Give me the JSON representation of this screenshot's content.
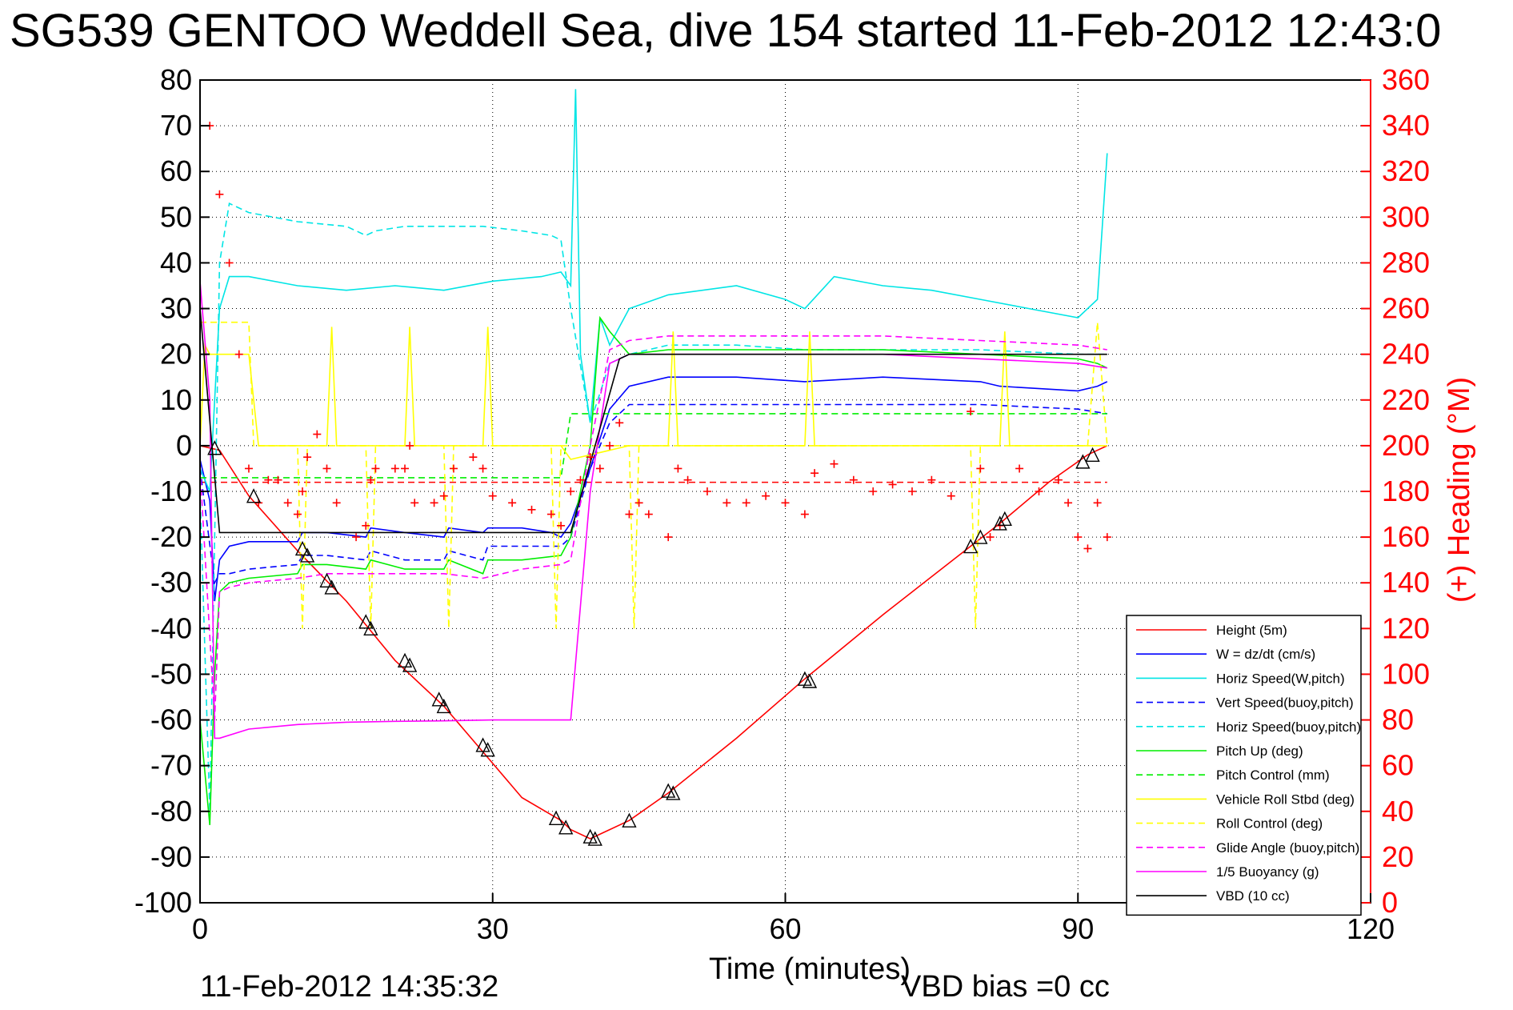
{
  "chart_data": {
    "type": "line",
    "title": "SG539 GENTOO Weddell Sea, dive 154 started 11-Feb-2012 12:43:0",
    "xlabel": "Time (minutes)",
    "ylabel_right": "(+) Heading (°M)",
    "footer_left": "11-Feb-2012 14:35:32",
    "footer_right": "VBD bias =0 cc",
    "xlim": [
      0,
      120
    ],
    "ylim": [
      -100,
      80
    ],
    "ylim_right": [
      0,
      360
    ],
    "x_ticks": [
      0,
      30,
      60,
      90,
      120
    ],
    "y_ticks": [
      80,
      70,
      60,
      50,
      40,
      30,
      20,
      10,
      0,
      -10,
      -20,
      -30,
      -40,
      -50,
      -60,
      -70,
      -80,
      -90,
      -100
    ],
    "y_ticks_right": [
      360,
      340,
      320,
      300,
      280,
      260,
      240,
      220,
      200,
      180,
      160,
      140,
      120,
      100,
      80,
      60,
      40,
      20,
      0
    ],
    "grid": true,
    "legend_position": "bottom-right",
    "colors": {
      "red": "#ff0000",
      "blue": "#0000ff",
      "cyan": "#00e5e5",
      "green": "#00ee00",
      "yellow": "#ffff00",
      "magenta": "#ff00ff",
      "black": "#000000"
    },
    "series": [
      {
        "name": "Height (5m)",
        "color": "#ff0000",
        "dash": false,
        "x": [
          0,
          2,
          5,
          10,
          15,
          20,
          25,
          29,
          33,
          37,
          38,
          40,
          42,
          44,
          48,
          55,
          62,
          70,
          79,
          82,
          87,
          91,
          93
        ],
        "y": [
          0,
          -1,
          -11,
          -23,
          -34,
          -47,
          -57,
          -67,
          -77,
          -82,
          -84,
          -86,
          -84,
          -82,
          -76,
          -64,
          -51,
          -37,
          -22,
          -17,
          -8,
          -2,
          0
        ]
      },
      {
        "name": "W = dz/dt (cm/s)",
        "color": "#0000ff",
        "dash": false,
        "x": [
          0,
          1,
          1.5,
          2,
          3,
          5,
          8,
          10,
          10.5,
          13,
          17,
          17.5,
          21,
          25,
          25.5,
          29,
          29.5,
          33,
          36,
          37,
          38,
          40,
          42,
          44,
          48,
          55,
          62,
          70,
          80,
          82,
          90,
          92,
          93
        ],
        "y": [
          -3,
          -12,
          -34,
          -25,
          -22,
          -21,
          -21,
          -21,
          -19,
          -19,
          -20,
          -18,
          -19,
          -20,
          -18,
          -19,
          -18,
          -18,
          -19,
          -20,
          -17,
          -5,
          8,
          13,
          15,
          15,
          14,
          15,
          14,
          13,
          12,
          13,
          14
        ]
      },
      {
        "name": "Horiz Speed(W,pitch)",
        "color": "#00e5e5",
        "dash": false,
        "x": [
          0,
          1,
          1.5,
          2,
          3,
          5,
          10,
          15,
          20,
          25,
          30,
          35,
          37,
          38,
          38.5,
          39,
          40,
          41,
          42,
          44,
          48,
          55,
          60,
          62,
          65,
          70,
          75,
          80,
          85,
          90,
          91,
          92,
          93
        ],
        "y": [
          -5,
          -10,
          10,
          30,
          37,
          37,
          35,
          34,
          35,
          34,
          36,
          37,
          38,
          35,
          78,
          20,
          5,
          28,
          22,
          30,
          33,
          35,
          32,
          30,
          37,
          35,
          34,
          32,
          30,
          28,
          30,
          32,
          64
        ]
      },
      {
        "name": "Vert Speed(buoy,pitch)",
        "color": "#0000ff",
        "dash": true,
        "x": [
          0,
          1.5,
          2,
          3,
          5,
          10,
          10.5,
          13,
          17,
          17.5,
          21,
          25,
          25.5,
          29,
          29.5,
          33,
          37,
          38,
          40,
          42,
          44,
          48,
          55,
          62,
          70,
          80,
          90,
          93
        ],
        "y": [
          -5,
          -30,
          -28,
          -28,
          -27,
          -26,
          -24,
          -24,
          -25,
          -23,
          -25,
          -25,
          -23,
          -25,
          -22,
          -22,
          -22,
          -20,
          -5,
          5,
          9,
          9,
          9,
          9,
          9,
          9,
          8,
          7
        ]
      },
      {
        "name": "Horiz Speed(buoy,pitch)",
        "color": "#00e5e5",
        "dash": true,
        "x": [
          0,
          1,
          2,
          3,
          5,
          10,
          15,
          17,
          18,
          21,
          25,
          29,
          33,
          36,
          37,
          38,
          40,
          42,
          44,
          48,
          55,
          62,
          70,
          80,
          90,
          93
        ],
        "y": [
          -10,
          -80,
          40,
          53,
          51,
          49,
          48,
          46,
          47,
          48,
          48,
          48,
          47,
          46,
          45,
          30,
          5,
          18,
          20,
          22,
          22,
          21,
          21,
          21,
          20,
          20
        ]
      },
      {
        "name": "Pitch Up (deg)",
        "color": "#00ee00",
        "dash": false,
        "x": [
          0,
          1,
          1.5,
          2,
          3,
          5,
          10,
          10.5,
          13,
          17,
          17.5,
          21,
          25,
          25.5,
          29,
          29.5,
          33,
          37,
          38,
          40,
          41,
          42,
          44,
          48,
          55,
          62,
          70,
          80,
          90,
          92,
          93
        ],
        "y": [
          -60,
          -83,
          -50,
          -32,
          -30,
          -29,
          -28,
          -26,
          -26,
          -27,
          -25,
          -27,
          -27,
          -25,
          -28,
          -25,
          -25,
          -24,
          -20,
          0,
          28,
          25,
          20,
          21,
          21,
          21,
          21,
          20,
          19,
          18,
          17
        ]
      },
      {
        "name": "Pitch Control (mm)",
        "color": "#00ee00",
        "dash": true,
        "x": [
          0,
          37,
          38,
          44,
          93
        ],
        "y": [
          -7,
          -7,
          7,
          7,
          7
        ]
      },
      {
        "name": "Vehicle Roll Stbd (deg)",
        "color": "#ffff00",
        "dash": false,
        "x": [
          0,
          0.5,
          1,
          3,
          5,
          6,
          13,
          13.5,
          14,
          21,
          21.5,
          22,
          29,
          29.5,
          30,
          37,
          38,
          44,
          48,
          48.5,
          49,
          62,
          62.5,
          63,
          79,
          80,
          82,
          82.5,
          83,
          93
        ],
        "y": [
          0,
          22,
          20,
          20,
          20,
          0,
          0,
          26,
          0,
          0,
          26,
          0,
          0,
          26,
          0,
          0,
          -3,
          0,
          0,
          25,
          0,
          0,
          25,
          0,
          0,
          0,
          0,
          25,
          0,
          0
        ]
      },
      {
        "name": "Roll Control (deg)",
        "color": "#ffff00",
        "dash": true,
        "x": [
          0,
          0.5,
          1,
          5,
          5.5,
          10,
          10.5,
          11,
          17,
          17.5,
          18,
          25,
          25.5,
          26,
          36,
          36.5,
          37,
          44,
          44.5,
          45,
          79,
          79.5,
          80,
          91,
          92,
          93
        ],
        "y": [
          27,
          27,
          27,
          27,
          0,
          0,
          -40,
          0,
          0,
          -40,
          0,
          0,
          -40,
          0,
          0,
          -40,
          0,
          0,
          -40,
          0,
          0,
          -40,
          0,
          0,
          27,
          0
        ]
      },
      {
        "name": "Glide Angle (buoy,pitch)",
        "color": "#ff00ff",
        "dash": true,
        "x": [
          0,
          1.5,
          2,
          3,
          5,
          10,
          13,
          17,
          21,
          25,
          29,
          33,
          37,
          38,
          40,
          42,
          44,
          48,
          55,
          62,
          70,
          80,
          90,
          93
        ],
        "y": [
          -5,
          -60,
          -32,
          -31,
          -30,
          -29,
          -28,
          -28,
          -28,
          -28,
          -29,
          -27,
          -26,
          -25,
          0,
          21,
          23,
          24,
          24,
          24,
          24,
          23,
          22,
          21
        ]
      },
      {
        "name": "1/5 Buoyancy (g)",
        "color": "#ff00ff",
        "dash": false,
        "x": [
          0,
          1,
          1.5,
          2,
          5,
          10,
          15,
          20,
          25,
          30,
          35,
          37,
          38,
          40,
          42,
          44,
          48,
          55,
          62,
          70,
          80,
          90,
          93
        ],
        "y": [
          36,
          10,
          -64,
          -64,
          -62,
          -61,
          -60.5,
          -60.3,
          -60.2,
          -60,
          -60,
          -60,
          -60,
          -10,
          18,
          20,
          20,
          20,
          20,
          20,
          19,
          18,
          17
        ]
      },
      {
        "name": "VBD (10 cc)",
        "color": "#000000",
        "dash": false,
        "x": [
          0,
          2,
          37,
          38,
          43,
          44,
          93
        ],
        "y": [
          30,
          -19,
          -19,
          -19,
          19,
          20,
          20
        ]
      }
    ],
    "heading": {
      "name": "Heading (+)",
      "color": "#ff0000",
      "x": [
        0,
        1,
        2,
        3,
        4,
        5,
        6,
        7,
        8,
        9,
        10,
        10.5,
        11,
        12,
        13,
        14,
        16,
        17,
        17.5,
        18,
        20,
        21,
        21.5,
        22,
        24,
        25,
        26,
        28,
        29,
        30,
        32,
        34,
        36,
        37,
        38,
        39,
        40,
        41,
        42,
        43,
        44,
        45,
        46,
        48,
        49,
        50,
        52,
        54,
        56,
        58,
        60,
        62,
        63,
        65,
        67,
        69,
        71,
        73,
        75,
        77,
        79,
        80,
        81,
        82,
        84,
        86,
        88,
        89,
        90,
        91,
        92,
        93
      ],
      "y": [
        300,
        340,
        310,
        280,
        240,
        190,
        175,
        185,
        185,
        175,
        170,
        180,
        195,
        205,
        190,
        175,
        160,
        165,
        185,
        190,
        190,
        190,
        200,
        175,
        175,
        178,
        190,
        195,
        190,
        178,
        175,
        172,
        170,
        165,
        180,
        185,
        195,
        190,
        200,
        210,
        170,
        175,
        170,
        160,
        190,
        185,
        180,
        175,
        175,
        178,
        175,
        170,
        188,
        192,
        185,
        180,
        183,
        180,
        185,
        178,
        215,
        190,
        160,
        165,
        190,
        180,
        185,
        175,
        160,
        155,
        175,
        160
      ]
    },
    "heading_mean": 184,
    "markers": {
      "symbol": "triangle",
      "color": "#000000",
      "x": [
        1.5,
        5.5,
        10.5,
        11,
        13,
        13.5,
        17,
        17.5,
        21,
        21.5,
        24.5,
        25,
        29,
        29.5,
        36.5,
        37.5,
        40,
        40.5,
        44,
        48,
        48.5,
        62,
        62.5,
        79,
        80,
        82,
        82.5,
        90.5,
        91.5
      ],
      "y": [
        -0.5,
        -11,
        -22.5,
        -24,
        -29.5,
        -31,
        -38.5,
        -40,
        -47,
        -48,
        -55.5,
        -57,
        -65.5,
        -66.5,
        -81.5,
        -83.5,
        -85.5,
        -86,
        -82,
        -75.5,
        -76,
        -51,
        -51.5,
        -22,
        -20,
        -17,
        -16,
        -3.5,
        -2
      ]
    }
  }
}
